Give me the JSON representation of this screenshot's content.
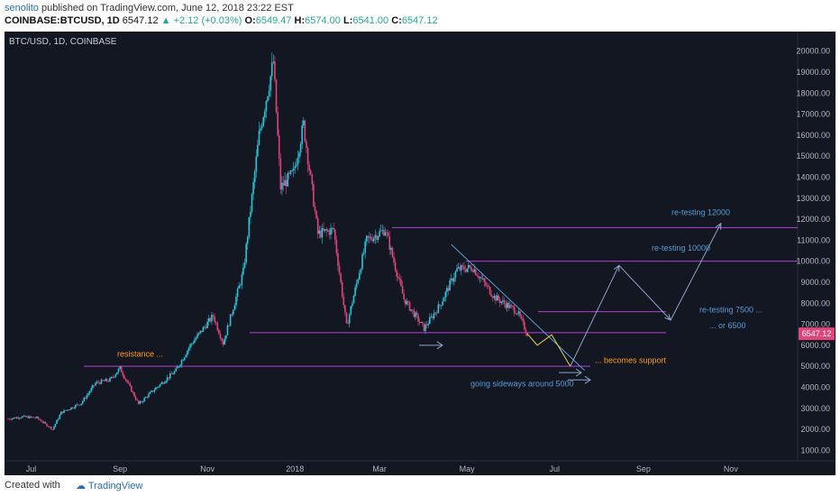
{
  "header": {
    "author": "senolito",
    "published_text": "published on TradingView.com, June 12, 2018 23:22 EST",
    "symbol": "COINBASE:BTCUSD, 1D",
    "last": "6547.12",
    "change": "+2.12 (+0.03%)",
    "o_label": "O:",
    "o": "6549.47",
    "h_label": "H:",
    "h": "6574.00",
    "l_label": "L:",
    "l": "6541.00",
    "c_label": "C:",
    "c": "6547.12"
  },
  "footer": {
    "created_with": "Created with",
    "brand": "TradingView"
  },
  "colors": {
    "background": "#131722",
    "up": "#26c6da",
    "down": "#e0447a",
    "level": "#b53fd6",
    "note_blue": "#5b9bd5",
    "note_orange": "#ff9a1f",
    "price_tag": "#e0447a"
  },
  "chart_data": {
    "type": "candlestick",
    "title": "BTC/USD, 1D, COINBASE",
    "ylim": [
      500,
      20500
    ],
    "y_ticks": [
      "20000.00",
      "19000.00",
      "18000.00",
      "17000.00",
      "16000.00",
      "15000.00",
      "14000.00",
      "13000.00",
      "12000.00",
      "11000.00",
      "10000.00",
      "9000.00",
      "8000.00",
      "7000.00",
      "6000.00",
      "5000.00",
      "4000.00",
      "3000.00",
      "2000.00",
      "1000.00"
    ],
    "x_ticks": [
      "Jul",
      "Sep",
      "Nov",
      "2018",
      "Mar",
      "May",
      "Jul",
      "Sep",
      "Nov"
    ],
    "last_price_label": "6547.12",
    "price_path": [
      [
        "2017-06-15",
        2500
      ],
      [
        "2017-06-25",
        2600
      ],
      [
        "2017-07-05",
        2550
      ],
      [
        "2017-07-16",
        2000
      ],
      [
        "2017-07-22",
        2800
      ],
      [
        "2017-08-05",
        3250
      ],
      [
        "2017-08-15",
        4200
      ],
      [
        "2017-08-25",
        4350
      ],
      [
        "2017-09-01",
        4900
      ],
      [
        "2017-09-14",
        3200
      ],
      [
        "2017-09-25",
        3900
      ],
      [
        "2017-10-10",
        4800
      ],
      [
        "2017-10-20",
        6000
      ],
      [
        "2017-11-05",
        7400
      ],
      [
        "2017-11-12",
        6100
      ],
      [
        "2017-11-26",
        9500
      ],
      [
        "2017-12-07",
        16000
      ],
      [
        "2017-12-17",
        19500
      ],
      [
        "2017-12-22",
        13500
      ],
      [
        "2017-12-31",
        14200
      ],
      [
        "2018-01-07",
        16500
      ],
      [
        "2018-01-17",
        11300
      ],
      [
        "2018-01-28",
        11500
      ],
      [
        "2018-02-06",
        6900
      ],
      [
        "2018-02-20",
        11000
      ],
      [
        "2018-03-05",
        11500
      ],
      [
        "2018-03-18",
        8200
      ],
      [
        "2018-04-01",
        6800
      ],
      [
        "2018-04-12",
        7900
      ],
      [
        "2018-04-24",
        9600
      ],
      [
        "2018-05-05",
        9700
      ],
      [
        "2018-05-20",
        8300
      ],
      [
        "2018-06-05",
        7600
      ],
      [
        "2018-06-12",
        6547
      ]
    ],
    "levels": [
      11600,
      10000,
      7600,
      6600,
      5000
    ],
    "projection_yellow": [
      [
        "2018-06-12",
        6547
      ],
      [
        "2018-06-19",
        6000
      ],
      [
        "2018-06-29",
        6500
      ],
      [
        "2018-07-12",
        5000
      ]
    ],
    "projection_blue": [
      [
        "2018-07-12",
        5000
      ],
      [
        "2018-08-15",
        9800
      ],
      [
        "2018-09-20",
        7200
      ],
      [
        "2018-10-25",
        11800
      ]
    ],
    "annotations": {
      "resistance": "resistance ...",
      "becomes_support": "... becomes support",
      "going_sideways": "going sideways around 5000",
      "retest_12000": "re-testing 12000",
      "retest_10000": "re-testing 10000",
      "retest_7500": "re-testing 7500 ...",
      "or_6500": "... or 6500"
    }
  }
}
